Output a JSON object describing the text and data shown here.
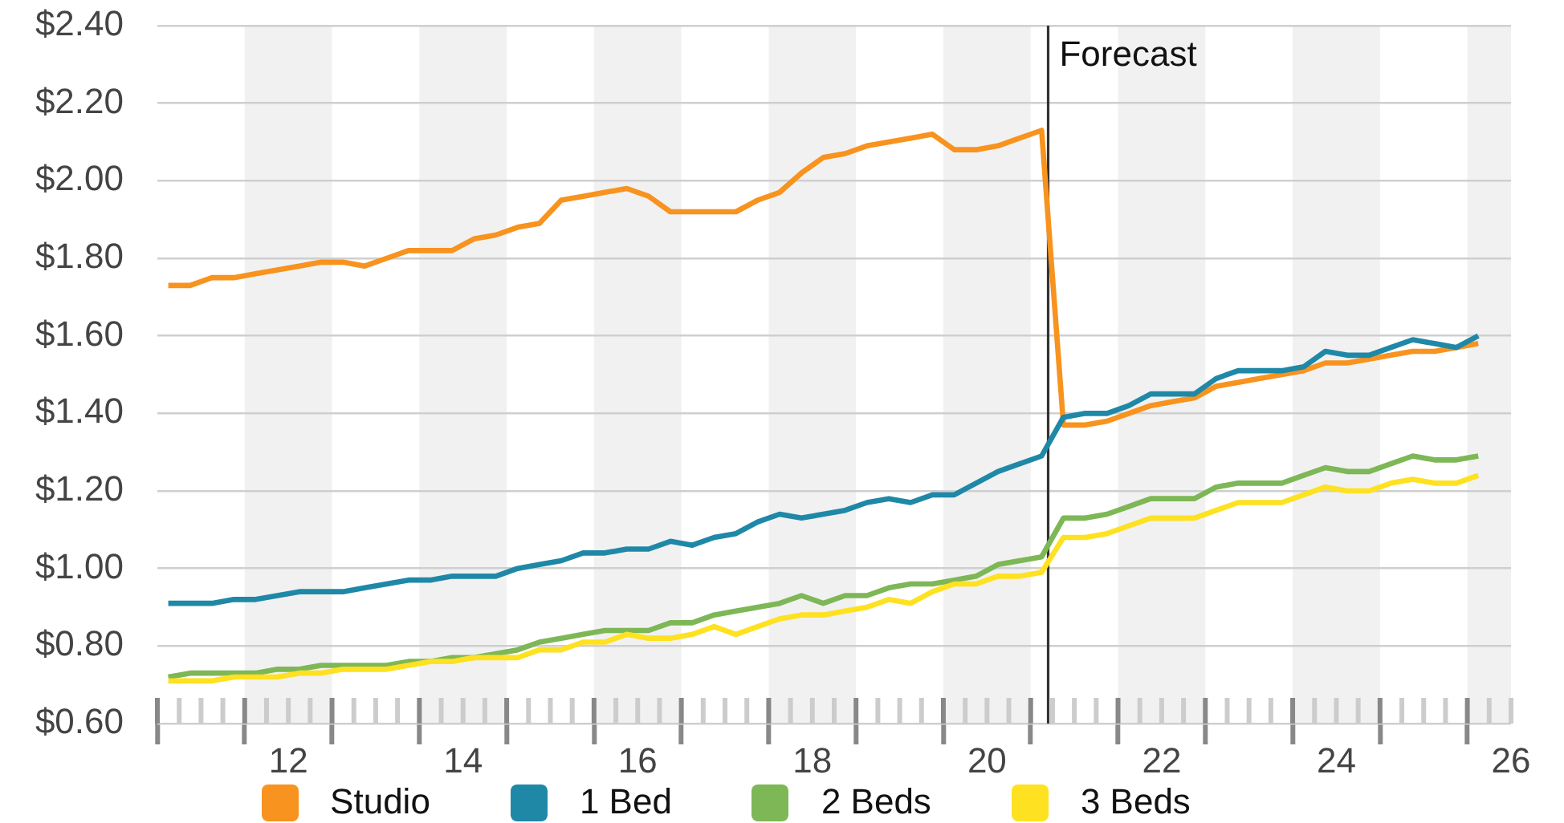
{
  "chart_data": {
    "type": "line",
    "x": [
      10.625,
      10.875,
      11.125,
      11.375,
      11.625,
      11.875,
      12.125,
      12.375,
      12.625,
      12.875,
      13.125,
      13.375,
      13.625,
      13.875,
      14.125,
      14.375,
      14.625,
      14.875,
      15.125,
      15.375,
      15.625,
      15.875,
      16.125,
      16.375,
      16.625,
      16.875,
      17.125,
      17.375,
      17.625,
      17.875,
      18.125,
      18.375,
      18.625,
      18.875,
      19.125,
      19.375,
      19.625,
      19.875,
      20.125,
      20.375,
      20.625,
      20.875,
      21.125,
      21.375,
      21.625,
      21.875,
      22.125,
      22.375,
      22.625,
      22.875,
      23.125,
      23.375,
      23.625,
      23.875,
      24.125,
      24.375,
      24.625,
      24.875,
      25.125,
      25.375,
      25.625
    ],
    "series": [
      {
        "name": "Studio",
        "color": "#f7931e",
        "values": [
          1.73,
          1.73,
          1.75,
          1.75,
          1.76,
          1.77,
          1.78,
          1.79,
          1.79,
          1.78,
          1.8,
          1.82,
          1.82,
          1.82,
          1.85,
          1.86,
          1.88,
          1.89,
          1.95,
          1.96,
          1.97,
          1.98,
          1.96,
          1.92,
          1.92,
          1.92,
          1.92,
          1.95,
          1.97,
          2.02,
          2.06,
          2.07,
          2.09,
          2.1,
          2.11,
          2.12,
          2.08,
          2.08,
          2.09,
          2.11,
          2.13,
          1.37,
          1.37,
          1.38,
          1.4,
          1.42,
          1.43,
          1.44,
          1.47,
          1.48,
          1.49,
          1.5,
          1.51,
          1.53,
          1.53,
          1.54,
          1.55,
          1.56,
          1.56,
          1.57,
          1.58
        ]
      },
      {
        "name": "1 Bed",
        "color": "#1f88a7",
        "values": [
          0.91,
          0.91,
          0.91,
          0.92,
          0.92,
          0.93,
          0.94,
          0.94,
          0.94,
          0.95,
          0.96,
          0.97,
          0.97,
          0.98,
          0.98,
          0.98,
          1.0,
          1.01,
          1.02,
          1.04,
          1.04,
          1.05,
          1.05,
          1.07,
          1.06,
          1.08,
          1.09,
          1.12,
          1.14,
          1.13,
          1.14,
          1.15,
          1.17,
          1.18,
          1.17,
          1.19,
          1.19,
          1.22,
          1.25,
          1.27,
          1.29,
          1.39,
          1.4,
          1.4,
          1.42,
          1.45,
          1.45,
          1.45,
          1.49,
          1.51,
          1.51,
          1.51,
          1.52,
          1.56,
          1.55,
          1.55,
          1.57,
          1.59,
          1.58,
          1.57,
          1.6
        ]
      },
      {
        "name": "2 Beds",
        "color": "#7db756",
        "values": [
          0.72,
          0.73,
          0.73,
          0.73,
          0.73,
          0.74,
          0.74,
          0.75,
          0.75,
          0.75,
          0.75,
          0.76,
          0.76,
          0.77,
          0.77,
          0.78,
          0.79,
          0.81,
          0.82,
          0.83,
          0.84,
          0.84,
          0.84,
          0.86,
          0.86,
          0.88,
          0.89,
          0.9,
          0.91,
          0.93,
          0.91,
          0.93,
          0.93,
          0.95,
          0.96,
          0.96,
          0.97,
          0.98,
          1.01,
          1.02,
          1.03,
          1.13,
          1.13,
          1.14,
          1.16,
          1.18,
          1.18,
          1.18,
          1.21,
          1.22,
          1.22,
          1.22,
          1.24,
          1.26,
          1.25,
          1.25,
          1.27,
          1.29,
          1.28,
          1.28,
          1.29
        ]
      },
      {
        "name": "3 Beds",
        "color": "#fee120",
        "values": [
          0.71,
          0.71,
          0.71,
          0.72,
          0.72,
          0.72,
          0.73,
          0.73,
          0.74,
          0.74,
          0.74,
          0.75,
          0.76,
          0.76,
          0.77,
          0.77,
          0.77,
          0.79,
          0.79,
          0.81,
          0.81,
          0.83,
          0.82,
          0.82,
          0.83,
          0.85,
          0.83,
          0.85,
          0.87,
          0.88,
          0.88,
          0.89,
          0.9,
          0.92,
          0.91,
          0.94,
          0.96,
          0.96,
          0.98,
          0.98,
          0.99,
          1.08,
          1.08,
          1.09,
          1.11,
          1.13,
          1.13,
          1.13,
          1.15,
          1.17,
          1.17,
          1.17,
          1.19,
          1.21,
          1.2,
          1.2,
          1.22,
          1.23,
          1.22,
          1.22,
          1.24
        ]
      }
    ],
    "xlim": [
      10.5,
      26
    ],
    "xticks": [
      {
        "value": 10.5,
        "label": null
      },
      {
        "value": 10.75,
        "label": null
      },
      {
        "value": 11,
        "label": null
      },
      {
        "value": 11.25,
        "label": null
      },
      {
        "value": 11.5,
        "label": null
      },
      {
        "value": 11.75,
        "label": null
      },
      12,
      {
        "value": 12.25,
        "label": null
      },
      {
        "value": 12.5,
        "label": null
      },
      {
        "value": 12.75,
        "label": null
      },
      {
        "value": 13,
        "label": null
      },
      {
        "value": 13.25,
        "label": null
      },
      {
        "value": 13.5,
        "label": null
      },
      {
        "value": 13.75,
        "label": null
      },
      14,
      {
        "value": 14.25,
        "label": null
      },
      {
        "value": 14.5,
        "label": null
      },
      {
        "value": 14.75,
        "label": null
      },
      {
        "value": 15,
        "label": null
      },
      {
        "value": 15.25,
        "label": null
      },
      {
        "value": 15.5,
        "label": null
      },
      {
        "value": 15.75,
        "label": null
      },
      16,
      {
        "value": 16.25,
        "label": null
      },
      {
        "value": 16.5,
        "label": null
      },
      {
        "value": 16.75,
        "label": null
      },
      {
        "value": 17,
        "label": null
      },
      {
        "value": 17.25,
        "label": null
      },
      {
        "value": 17.5,
        "label": null
      },
      {
        "value": 17.75,
        "label": null
      },
      18,
      {
        "value": 18.25,
        "label": null
      },
      {
        "value": 18.5,
        "label": null
      },
      {
        "value": 18.75,
        "label": null
      },
      {
        "value": 19,
        "label": null
      },
      {
        "value": 19.25,
        "label": null
      },
      {
        "value": 19.5,
        "label": null
      },
      {
        "value": 19.75,
        "label": null
      },
      20,
      {
        "value": 20.25,
        "label": null
      },
      {
        "value": 20.5,
        "label": null
      },
      {
        "value": 20.75,
        "label": null
      },
      {
        "value": 21,
        "label": null
      },
      {
        "value": 21.25,
        "label": null
      },
      {
        "value": 21.5,
        "label": null
      },
      {
        "value": 21.75,
        "label": null
      },
      22,
      {
        "value": 22.25,
        "label": null
      },
      {
        "value": 22.5,
        "label": null
      },
      {
        "value": 22.75,
        "label": null
      },
      {
        "value": 23,
        "label": null
      },
      {
        "value": 23.25,
        "label": null
      },
      {
        "value": 23.5,
        "label": null
      },
      {
        "value": 23.75,
        "label": null
      },
      24,
      {
        "value": 24.25,
        "label": null
      },
      {
        "value": 24.5,
        "label": null
      },
      {
        "value": 24.75,
        "label": null
      },
      {
        "value": 25,
        "label": null
      },
      {
        "value": 25.25,
        "label": null
      },
      {
        "value": 25.5,
        "label": null
      },
      {
        "value": 25.75,
        "label": null
      },
      26
    ],
    "ylim": [
      0.6,
      2.4
    ],
    "yticks": [
      {
        "value": 0.6,
        "label": "$0.60"
      },
      {
        "value": 0.8,
        "label": "$0.80"
      },
      {
        "value": 1.0,
        "label": "$1.00"
      },
      {
        "value": 1.2,
        "label": "$1.20"
      },
      {
        "value": 1.4,
        "label": "$1.40"
      },
      {
        "value": 1.6,
        "label": "$1.60"
      },
      {
        "value": 1.8,
        "label": "$1.80"
      },
      {
        "value": 2.0,
        "label": "$2.00"
      },
      {
        "value": 2.2,
        "label": "$2.20"
      },
      {
        "value": 2.4,
        "label": "$2.40"
      }
    ],
    "grid": "y",
    "legend": "bottom",
    "marker": "none",
    "line_style": "solid",
    "ref_lines": [
      {
        "axis": "x",
        "value": 20.7,
        "label": "Forecast",
        "color": "#333333"
      }
    ],
    "bands": [
      {
        "axis": "x",
        "from": 11.5,
        "to": 12.5,
        "color": "#f1f1f1"
      },
      {
        "axis": "x",
        "from": 13.5,
        "to": 14.5,
        "color": "#f1f1f1"
      },
      {
        "axis": "x",
        "from": 15.5,
        "to": 16.5,
        "color": "#f1f1f1"
      },
      {
        "axis": "x",
        "from": 17.5,
        "to": 18.5,
        "color": "#f1f1f1"
      },
      {
        "axis": "x",
        "from": 19.5,
        "to": 20.5,
        "color": "#f1f1f1"
      },
      {
        "axis": "x",
        "from": 21.5,
        "to": 22.5,
        "color": "#f1f1f1"
      },
      {
        "axis": "x",
        "from": 23.5,
        "to": 24.5,
        "color": "#f1f1f1"
      },
      {
        "axis": "x",
        "from": 25.5,
        "to": 26,
        "color": "#f1f1f1"
      }
    ]
  }
}
